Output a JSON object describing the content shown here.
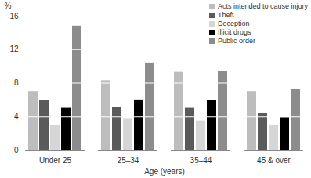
{
  "chart_data": {
    "type": "bar",
    "categories": [
      "Under 25",
      "25–34",
      "35–44",
      "45 & over"
    ],
    "series": [
      {
        "name": "Acts intended to cause injury",
        "color": "#bdbdbd",
        "values": [
          7.0,
          8.3,
          9.3,
          7.0
        ]
      },
      {
        "name": "Theft",
        "color": "#5a5a5a",
        "values": [
          5.9,
          5.1,
          5.0,
          4.4
        ]
      },
      {
        "name": "Deception",
        "color": "#d6d6d6",
        "values": [
          2.9,
          3.7,
          3.5,
          3.0
        ]
      },
      {
        "name": "Illicit drugs",
        "color": "#000000",
        "values": [
          5.0,
          6.0,
          5.9,
          3.9
        ]
      },
      {
        "name": "Public order",
        "color": "#8c8c8c",
        "values": [
          14.8,
          10.4,
          9.4,
          7.3
        ]
      }
    ],
    "x_label": "Age (years)",
    "y_label": "%",
    "ylim": [
      0,
      16
    ],
    "yticks": [
      0,
      4,
      8,
      12,
      16
    ],
    "grid": true,
    "legend": "top-right"
  }
}
